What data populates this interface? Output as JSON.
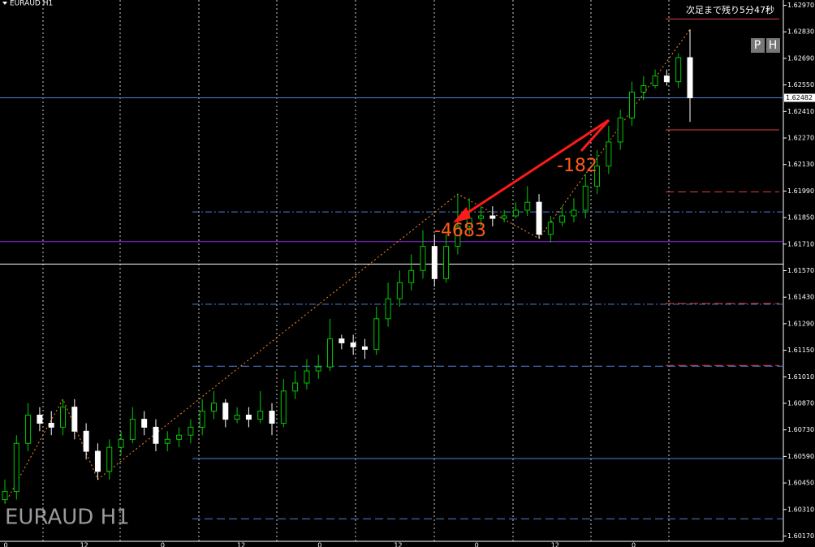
{
  "chart_data": {
    "type": "candlestick",
    "symbol_label": "EURAUD H1",
    "watermark": "EURAUD H1",
    "countdown": "次足まで残り5分47秒",
    "buttons": [
      "P",
      "H"
    ],
    "bull_color": "#00c800",
    "bear_color": "#ffffff",
    "candles": [
      [
        1.60362,
        1.60468,
        1.60341,
        1.60405
      ],
      [
        1.60405,
        1.60702,
        1.60362,
        1.60659
      ],
      [
        1.60659,
        1.60871,
        1.60617,
        1.60808
      ],
      [
        1.60808,
        1.6085,
        1.60723,
        1.60765
      ],
      [
        1.60765,
        1.60829,
        1.60702,
        1.60744
      ],
      [
        1.60744,
        1.60892,
        1.60702,
        1.6085
      ],
      [
        1.6085,
        1.60892,
        1.6068,
        1.60723
      ],
      [
        1.60723,
        1.60765,
        1.60574,
        1.60617
      ],
      [
        1.60617,
        1.60659,
        1.60468,
        1.60511
      ],
      [
        1.60511,
        1.6068,
        1.60468,
        1.60638
      ],
      [
        1.60638,
        1.60723,
        1.60596,
        1.6068
      ],
      [
        1.6068,
        1.6085,
        1.60659,
        1.60786
      ],
      [
        1.60786,
        1.60829,
        1.60702,
        1.60744
      ],
      [
        1.60744,
        1.60786,
        1.60617,
        1.60659
      ],
      [
        1.60659,
        1.60723,
        1.60617,
        1.6068
      ],
      [
        1.6068,
        1.60744,
        1.60638,
        1.60702
      ],
      [
        1.60702,
        1.60786,
        1.60659,
        1.60744
      ],
      [
        1.60744,
        1.60892,
        1.60702,
        1.60829
      ],
      [
        1.60829,
        1.60935,
        1.60786,
        1.60871
      ],
      [
        1.60871,
        1.60892,
        1.60744,
        1.60786
      ],
      [
        1.60786,
        1.6085,
        1.60765,
        1.60808
      ],
      [
        1.60808,
        1.6085,
        1.60744,
        1.60786
      ],
      [
        1.60786,
        1.60935,
        1.60765,
        1.60829
      ],
      [
        1.60829,
        1.60871,
        1.60702,
        1.60765
      ],
      [
        1.60765,
        1.60998,
        1.60744,
        1.60935
      ],
      [
        1.60935,
        1.61041,
        1.60892,
        1.60977
      ],
      [
        1.60977,
        1.61104,
        1.60943,
        1.61041
      ],
      [
        1.61041,
        1.61126,
        1.60998,
        1.61062
      ],
      [
        1.61062,
        1.61316,
        1.61041,
        1.6121
      ],
      [
        1.6121,
        1.61232,
        1.61155,
        1.61189
      ],
      [
        1.61189,
        1.61232,
        1.61126,
        1.61168
      ],
      [
        1.61168,
        1.6121,
        1.61104,
        1.61155
      ],
      [
        1.61155,
        1.6138,
        1.61126,
        1.61316
      ],
      [
        1.61316,
        1.61507,
        1.61274,
        1.61422
      ],
      [
        1.61422,
        1.61571,
        1.6138,
        1.61507
      ],
      [
        1.61507,
        1.61656,
        1.61465,
        1.61571
      ],
      [
        1.61571,
        1.61783,
        1.61528,
        1.61698
      ],
      [
        1.61698,
        1.61762,
        1.61486,
        1.61528
      ],
      [
        1.61528,
        1.61762,
        1.61507,
        1.61698
      ],
      [
        1.61698,
        1.61974,
        1.61656,
        1.61804
      ],
      [
        1.61804,
        1.61952,
        1.61762,
        1.61846
      ],
      [
        1.61846,
        1.6191,
        1.61804,
        1.61859
      ],
      [
        1.61859,
        1.6191,
        1.61804,
        1.61846
      ],
      [
        1.61846,
        1.61889,
        1.61825,
        1.61859
      ],
      [
        1.61859,
        1.61931,
        1.61846,
        1.61889
      ],
      [
        1.61889,
        1.62016,
        1.61859,
        1.61931
      ],
      [
        1.61931,
        1.61974,
        1.6174,
        1.61762
      ],
      [
        1.61762,
        1.61859,
        1.61719,
        1.61825
      ],
      [
        1.61825,
        1.6191,
        1.61804,
        1.61859
      ],
      [
        1.61859,
        1.61952,
        1.61825,
        1.61889
      ],
      [
        1.61889,
        1.6208,
        1.61846,
        1.62016
      ],
      [
        1.62016,
        1.62207,
        1.61974,
        1.62122
      ],
      [
        1.62122,
        1.62334,
        1.6208,
        1.62249
      ],
      [
        1.62249,
        1.62419,
        1.62207,
        1.62376
      ],
      [
        1.62376,
        1.62567,
        1.62334,
        1.62512
      ],
      [
        1.62512,
        1.62597,
        1.6247,
        1.62546
      ],
      [
        1.62546,
        1.62631,
        1.62533,
        1.62597
      ],
      [
        1.62597,
        1.62631,
        1.62546,
        1.62567
      ],
      [
        1.62567,
        1.62716,
        1.62533,
        1.62694
      ],
      [
        1.62694,
        1.62843,
        1.62355,
        1.62482
      ]
    ],
    "zigzag": [
      {
        "index": 0,
        "price": 1.60341
      },
      {
        "index": 5,
        "price": 1.60892
      },
      {
        "index": 8,
        "price": 1.60468
      },
      {
        "index": 39,
        "price": 1.61974
      },
      {
        "index": 46,
        "price": 1.6174
      },
      {
        "index": 59,
        "price": 1.62843
      }
    ],
    "bid": {
      "value": 1.62482,
      "label": "1.62482"
    },
    "levels": [
      {
        "price": 1.62482,
        "color": "#4f7fd8",
        "dash": "solid",
        "span": "full"
      },
      {
        "price": 1.61723,
        "color": "#8a2be2",
        "dash": "solid",
        "span": "full"
      },
      {
        "price": 1.61605,
        "color": "#ffffff",
        "dash": "solid",
        "span": "full"
      },
      {
        "price": 1.6188,
        "color": "#4f7fd8",
        "dash": "dashdot",
        "span": "partial"
      },
      {
        "price": 1.61393,
        "color": "#4f7fd8",
        "dash": "dashdot",
        "span": "partial"
      },
      {
        "price": 1.61066,
        "color": "#4f7fd8",
        "dash": "dash",
        "span": "partial"
      },
      {
        "price": 1.60579,
        "color": "#4f7fd8",
        "dash": "solid",
        "span": "partial"
      },
      {
        "price": 1.60261,
        "color": "#4f7fd8",
        "dash": "dash",
        "span": "partial"
      },
      {
        "price": 1.62898,
        "color": "#e04040",
        "dash": "solid",
        "span": "short"
      },
      {
        "price": 1.62313,
        "color": "#e04040",
        "dash": "solid",
        "span": "short"
      },
      {
        "price": 1.61986,
        "color": "#e04040",
        "dash": "dash",
        "span": "short"
      },
      {
        "price": 1.61397,
        "color": "#e04040",
        "dash": "dash",
        "span": "short"
      },
      {
        "price": 1.6107,
        "color": "#e04040",
        "dash": "dash",
        "span": "short"
      }
    ],
    "trade_labels": [
      "-182",
      "-4683"
    ],
    "ylim": [
      1.60142,
      1.62998
    ],
    "yticks": [
      {
        "value": 1.6297,
        "label": "1.62970"
      },
      {
        "value": 1.6283,
        "label": "1.62830"
      },
      {
        "value": 1.6269,
        "label": "1.62690"
      },
      {
        "value": 1.6255,
        "label": "1.62550"
      },
      {
        "value": 1.6241,
        "label": "1.62410"
      },
      {
        "value": 1.6227,
        "label": "1.62270"
      },
      {
        "value": 1.6213,
        "label": "1.62130"
      },
      {
        "value": 1.6199,
        "label": "1.61990"
      },
      {
        "value": 1.6185,
        "label": "1.61850"
      },
      {
        "value": 1.6171,
        "label": "1.61710"
      },
      {
        "value": 1.6157,
        "label": "1.61570"
      },
      {
        "value": 1.6143,
        "label": "1.61430"
      },
      {
        "value": 1.6129,
        "label": "1.61290"
      },
      {
        "value": 1.6115,
        "label": "1.61150"
      },
      {
        "value": 1.6101,
        "label": "1.61010"
      },
      {
        "value": 1.6087,
        "label": "1.60870"
      },
      {
        "value": 1.6073,
        "label": "1.60730"
      },
      {
        "value": 1.6059,
        "label": "1.60590"
      },
      {
        "value": 1.6045,
        "label": "1.60450"
      },
      {
        "value": 1.6031,
        "label": "1.60310"
      },
      {
        "value": 1.6017,
        "label": "1.60170"
      }
    ],
    "time_labels": [
      "0",
      "12",
      "0",
      "12",
      "0",
      "12",
      "0",
      "12",
      "0"
    ]
  }
}
